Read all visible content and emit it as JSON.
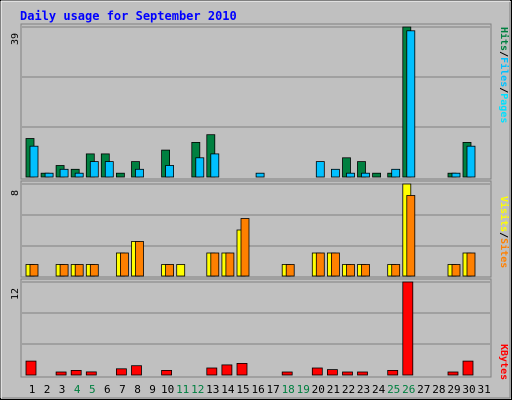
{
  "chart_data": [
    {
      "type": "bar",
      "title": "Daily usage for September 2010",
      "categories": [
        "1",
        "2",
        "3",
        "4",
        "5",
        "6",
        "7",
        "8",
        "9",
        "10",
        "11",
        "12",
        "13",
        "14",
        "15",
        "16",
        "17",
        "18",
        "19",
        "20",
        "21",
        "22",
        "23",
        "24",
        "25",
        "26",
        "27",
        "28",
        "29",
        "30",
        "31"
      ],
      "weekend_days": [
        "4",
        "5",
        "11",
        "12",
        "18",
        "19",
        "25",
        "26"
      ],
      "panels": [
        {
          "ylim": [
            0,
            39
          ],
          "max_label": "39",
          "side_labels": [
            "Pages",
            "/",
            "Files",
            "/",
            "Hits"
          ],
          "series": [
            {
              "name": "Hits",
              "color": "#008040",
              "values": [
                10,
                1,
                3,
                2,
                6,
                6,
                1,
                4,
                0,
                7,
                0,
                9,
                11,
                0,
                0,
                0,
                0,
                0,
                0,
                0,
                0,
                5,
                4,
                1,
                1,
                39,
                0,
                0,
                1,
                9,
                0
              ]
            },
            {
              "name": "Files",
              "color": "#00C0FF",
              "values": [
                8,
                1,
                2,
                1,
                4,
                4,
                0,
                2,
                0,
                3,
                0,
                5,
                6,
                0,
                0,
                1,
                0,
                0,
                0,
                4,
                2,
                1,
                1,
                0,
                2,
                38,
                0,
                0,
                1,
                8,
                0
              ]
            },
            {
              "name": "Pages",
              "color": "#00E0FF",
              "values": [
                0,
                0,
                0,
                0,
                0,
                0,
                0,
                0,
                0,
                0,
                0,
                0,
                0,
                0,
                0,
                0,
                0,
                0,
                0,
                0,
                0,
                0,
                0,
                0,
                0,
                0,
                0,
                0,
                0,
                0,
                0
              ]
            }
          ]
        },
        {
          "ylim": [
            0,
            8
          ],
          "max_label": "8",
          "side_labels": [
            "Sites",
            "/",
            "Visits"
          ],
          "series": [
            {
              "name": "Visits",
              "color": "#FFFF00",
              "values": [
                1,
                0,
                1,
                1,
                1,
                0,
                2,
                3,
                0,
                1,
                1,
                0,
                2,
                2,
                4,
                0,
                0,
                1,
                0,
                2,
                2,
                1,
                1,
                0,
                1,
                8,
                0,
                0,
                1,
                2,
                0
              ]
            },
            {
              "name": "Sites",
              "color": "#FF8000",
              "values": [
                1,
                0,
                1,
                1,
                1,
                0,
                2,
                3,
                0,
                1,
                0,
                0,
                2,
                2,
                5,
                0,
                0,
                1,
                0,
                2,
                2,
                1,
                1,
                0,
                1,
                7,
                0,
                0,
                1,
                2,
                0
              ]
            }
          ]
        },
        {
          "ylim": [
            0,
            12
          ],
          "max_label": "12",
          "side_labels": [
            "KBytes"
          ],
          "series": [
            {
              "name": "KBytes",
              "color": "#FF0000",
              "values": [
                1.8,
                0,
                0.3,
                0.6,
                0.4,
                0,
                0.8,
                1.2,
                0,
                0.6,
                0,
                0,
                0.9,
                1.3,
                1.5,
                0,
                0,
                0.2,
                0,
                0.9,
                0.7,
                0.2,
                0.3,
                0,
                0.6,
                12,
                0,
                0,
                0.2,
                1.8,
                0
              ]
            }
          ]
        }
      ]
    }
  ]
}
